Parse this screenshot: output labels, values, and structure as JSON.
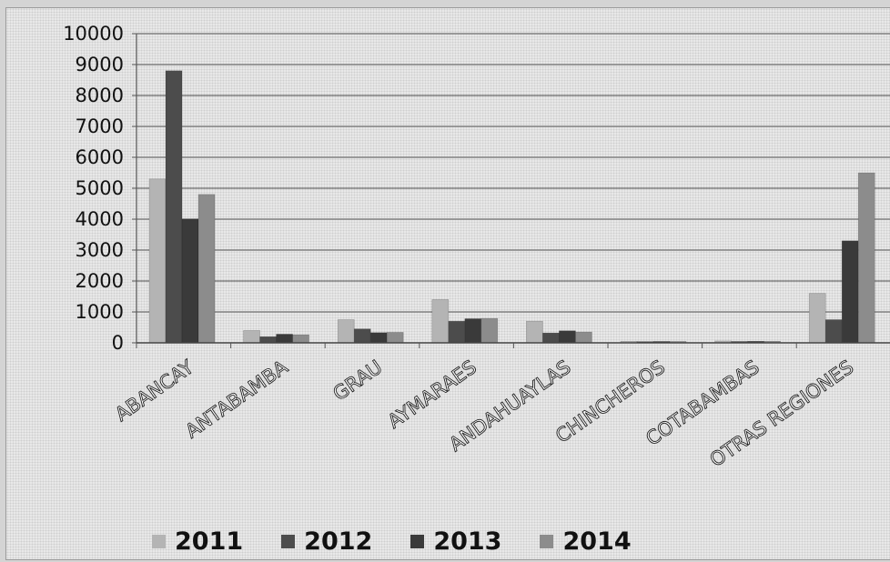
{
  "chart_data": {
    "type": "bar",
    "title": "",
    "xlabel": "",
    "ylabel": "",
    "ylim": [
      0,
      10000
    ],
    "yticks": [
      "0",
      "1000",
      "2000",
      "3000",
      "4000",
      "5000",
      "6000",
      "7000",
      "8000",
      "9000",
      "10000"
    ],
    "categories": [
      "ABANCAY",
      "ANTABAMBA",
      "GRAU",
      "AYMARAES",
      "ANDAHUAYLAS",
      "CHINCHEROS",
      "COTABAMBAS",
      "OTRAS REGIONES"
    ],
    "grid": true,
    "legend_position": "bottom",
    "series": [
      {
        "name": "2011",
        "color": "#b4b4b4",
        "values": [
          5300,
          400,
          750,
          1400,
          700,
          50,
          60,
          1600
        ]
      },
      {
        "name": "2012",
        "color": "#4c4c4c",
        "values": [
          8800,
          200,
          450,
          700,
          320,
          40,
          45,
          750
        ]
      },
      {
        "name": "2013",
        "color": "#3a3a3a",
        "values": [
          4000,
          280,
          330,
          780,
          390,
          45,
          50,
          3300
        ]
      },
      {
        "name": "2014",
        "color": "#8c8c8c",
        "values": [
          4800,
          260,
          340,
          790,
          350,
          45,
          50,
          5500
        ]
      }
    ]
  }
}
